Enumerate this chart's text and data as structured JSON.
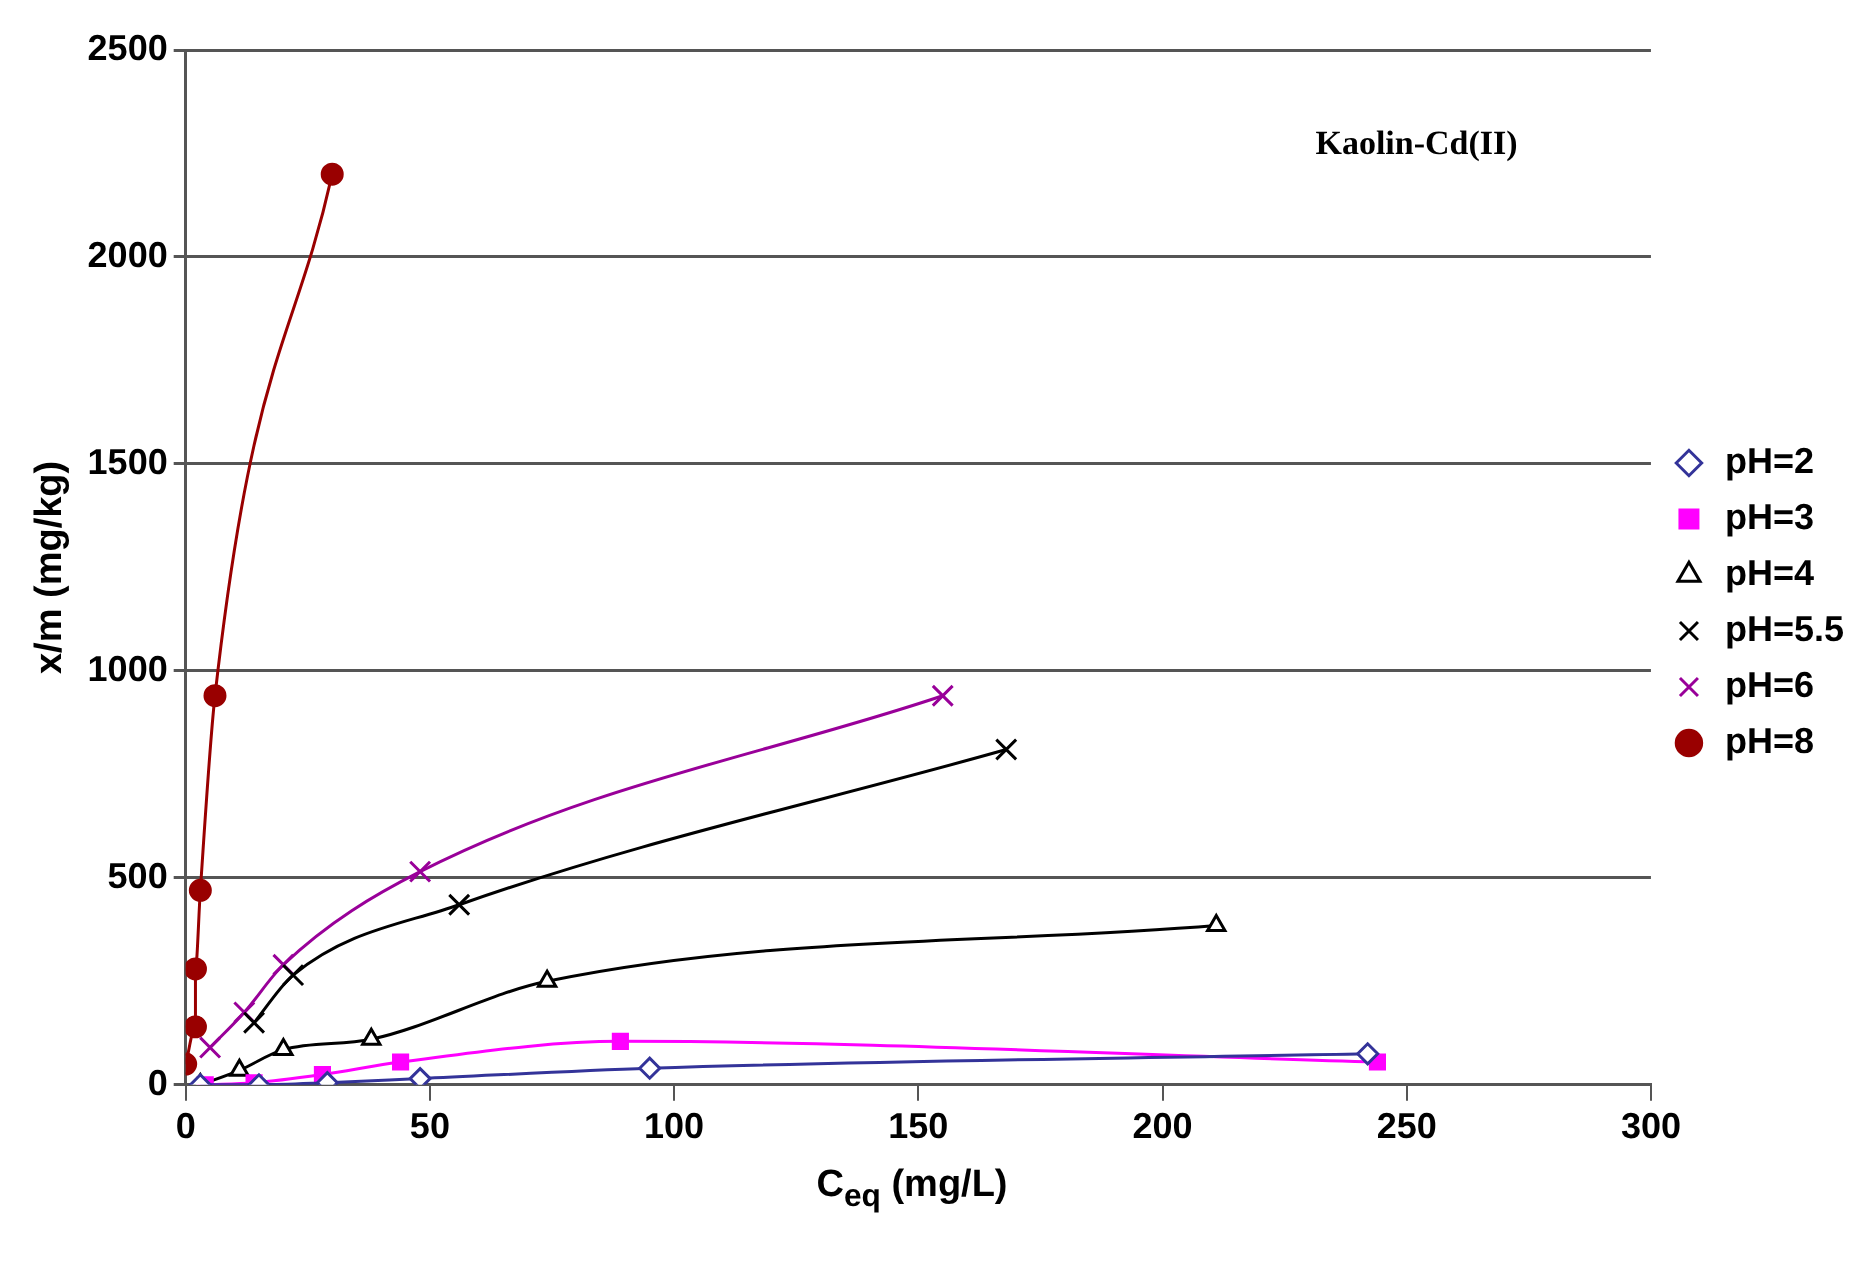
{
  "chart_data": {
    "type": "line",
    "xlabel": "C$_{eq}$ (mg/L)",
    "ylabel": "x/m (mg/kg)",
    "annotations": [
      "Kaolin-Cd(II)"
    ],
    "xlim": [
      0,
      300
    ],
    "xticks": [
      0,
      50,
      100,
      150,
      200,
      250,
      300
    ],
    "ylim": [
      0,
      2500
    ],
    "yticks": [
      0,
      500,
      1000,
      1500,
      2000,
      2500
    ],
    "grid": "y",
    "legend": "right",
    "line_style": "solid",
    "series": [
      {
        "name": "pH=2",
        "color": "#333399",
        "marker": "diamond",
        "x": [
          3,
          15,
          29,
          48,
          95,
          242
        ],
        "values": [
          0,
          0,
          5,
          15,
          40,
          75
        ]
      },
      {
        "name": "pH=3",
        "color": "#ff00ff",
        "marker": "square",
        "x": [
          4,
          14,
          28,
          44,
          89,
          244
        ],
        "values": [
          0,
          5,
          25,
          55,
          105,
          55
        ]
      },
      {
        "name": "pH=4",
        "color": "#000000",
        "marker": "triangle",
        "x": [
          3,
          11,
          20,
          38,
          74,
          211
        ],
        "values": [
          0,
          35,
          85,
          110,
          250,
          385
        ]
      },
      {
        "name": "pH=5.5",
        "color": "#000000",
        "marker": "cross",
        "x": [
          14,
          22,
          56,
          168
        ],
        "values": [
          150,
          265,
          435,
          810
        ]
      },
      {
        "name": "pH=6",
        "color": "#990099",
        "marker": "cross",
        "x": [
          5,
          12,
          20,
          48,
          155
        ],
        "values": [
          90,
          175,
          290,
          515,
          940
        ]
      },
      {
        "name": "pH=8",
        "color": "#990000",
        "marker": "circle",
        "x": [
          0,
          2,
          2,
          3,
          6,
          30
        ],
        "values": [
          50,
          140,
          280,
          470,
          940,
          2200
        ]
      }
    ]
  }
}
